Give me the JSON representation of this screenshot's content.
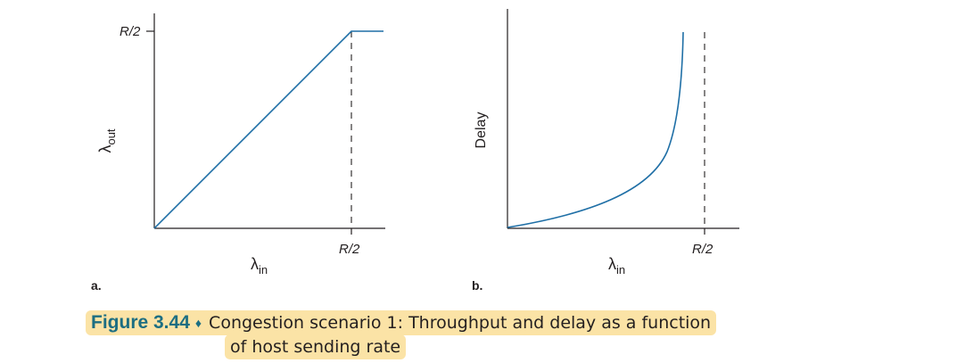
{
  "panel_a": {
    "letter": "a.",
    "ylabel_main": "λ",
    "ylabel_sub": "out",
    "xlabel_main": "λ",
    "xlabel_sub": "in",
    "ytick": "R/2",
    "xtick": "R/2"
  },
  "panel_b": {
    "letter": "b.",
    "ylabel": "Delay",
    "xlabel_main": "λ",
    "xlabel_sub": "in",
    "xtick": "R/2"
  },
  "caption": {
    "figure_number": "Figure 3.44",
    "separator": "♦",
    "line1": "Congestion scenario 1: Throughput and delay as a function",
    "line2": "of host sending rate"
  },
  "colors": {
    "curve": "#1f6fa6",
    "axis": "#231f20",
    "caption_highlight": "#fbe3a6",
    "figure_number": "#1c6e82"
  }
}
